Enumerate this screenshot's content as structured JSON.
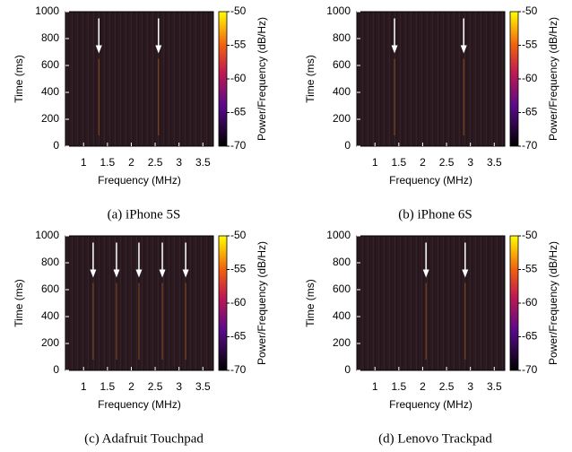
{
  "chart_data": [
    {
      "type": "heatmap",
      "caption": "(a) iPhone 5S",
      "xlabel": "Frequency (MHz)",
      "ylabel": "Time (ms)",
      "colorbar_label": "Power/Frequency (dB/Hz)",
      "xlim": [
        0.62,
        3.72
      ],
      "xticks": [
        1,
        1.5,
        2,
        2.5,
        3,
        3.5
      ],
      "ylim": [
        0,
        1000
      ],
      "yticks": [
        0,
        200,
        400,
        600,
        800,
        1000
      ],
      "clim": [
        -70,
        -50
      ],
      "cticks": [
        -50,
        -55,
        -60,
        -65,
        -70
      ],
      "arrows": [
        1.32,
        2.57
      ]
    },
    {
      "type": "heatmap",
      "caption": "(b) iPhone 6S",
      "xlabel": "Frequency (MHz)",
      "ylabel": "Time (ms)",
      "colorbar_label": "Power/Frequency (dB/Hz)",
      "xlim": [
        0.62,
        3.72
      ],
      "xticks": [
        1,
        1.5,
        2,
        2.5,
        3,
        3.5
      ],
      "ylim": [
        0,
        1000
      ],
      "yticks": [
        0,
        200,
        400,
        600,
        800,
        1000
      ],
      "clim": [
        -70,
        -50
      ],
      "cticks": [
        -50,
        -55,
        -60,
        -65,
        -70
      ],
      "arrows": [
        1.41,
        2.86
      ]
    },
    {
      "type": "heatmap",
      "caption": "(c) Adafruit Touchpad",
      "xlabel": "Frequency (MHz)",
      "ylabel": "Time (ms)",
      "colorbar_label": "Power/Frequency (dB/Hz)",
      "xlim": [
        0.62,
        3.72
      ],
      "xticks": [
        1,
        1.5,
        2,
        2.5,
        3,
        3.5
      ],
      "ylim": [
        0,
        1000
      ],
      "yticks": [
        0,
        200,
        400,
        600,
        800,
        1000
      ],
      "clim": [
        -70,
        -50
      ],
      "cticks": [
        -50,
        -55,
        -60,
        -65,
        -70
      ],
      "arrows": [
        1.2,
        1.69,
        2.16,
        2.65,
        3.14
      ]
    },
    {
      "type": "heatmap",
      "caption": "(d) Lenovo Trackpad",
      "xlabel": "Frequency (MHz)",
      "ylabel": "Time (ms)",
      "colorbar_label": "Power/Frequency (dB/Hz)",
      "xlim": [
        0.62,
        3.72
      ],
      "xticks": [
        1,
        1.5,
        2,
        2.5,
        3,
        3.5
      ],
      "ylim": [
        0,
        1000
      ],
      "yticks": [
        0,
        200,
        400,
        600,
        800,
        1000
      ],
      "clim": [
        -70,
        -50
      ],
      "cticks": [
        -50,
        -55,
        -60,
        -65,
        -70
      ],
      "arrows": [
        2.07,
        2.89
      ]
    }
  ]
}
